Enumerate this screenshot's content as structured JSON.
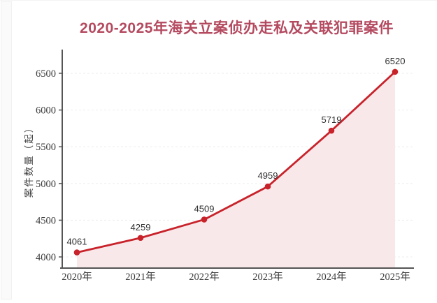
{
  "chart_data": {
    "type": "line",
    "title": "2020-2025年海关立案侦办走私及关联犯罪案件",
    "categories": [
      "2020年",
      "2021年",
      "2022年",
      "2023年",
      "2024年",
      "2025年"
    ],
    "series": [
      {
        "name": "案件数量",
        "values": [
          4061,
          4259,
          4509,
          4959,
          5719,
          6520
        ]
      }
    ],
    "data_labels": [
      "4061",
      "4259",
      "4509",
      "4959",
      "5719",
      "6520"
    ],
    "xlabel": "",
    "ylabel": "案件数量（起）",
    "yticks": [
      4000,
      4500,
      5000,
      5500,
      6000,
      6500
    ],
    "ylim": [
      4000,
      6500
    ],
    "grid": true,
    "legend_position": "none",
    "area_fill": true,
    "colors": {
      "line": "#c8232b",
      "point": "#c8232b",
      "area": "#f9e8ea",
      "axis": "#555555",
      "grid": "#ededed",
      "tick_text": "#3c3c3c",
      "data_label_text": "#303030",
      "ylabel_text": "#444444",
      "title": "#b44a60"
    }
  }
}
